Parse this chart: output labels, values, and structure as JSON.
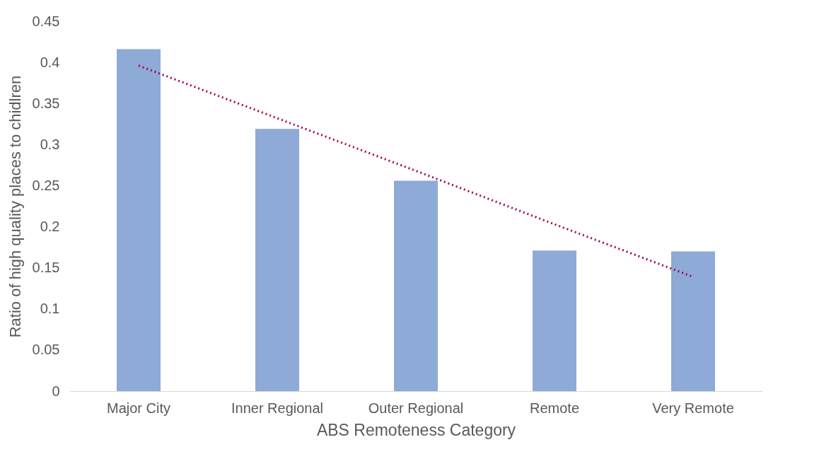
{
  "chart_data": {
    "type": "bar",
    "xlabel": "ABS Remoteness Category",
    "ylabel": "Ratio of high quality places to chidlren",
    "categories": [
      "Major City",
      "Inner Regional",
      "Outer Regional",
      "Remote",
      "Very Remote"
    ],
    "series": [
      {
        "color": "#8eaad6",
        "values": [
          0.416,
          0.319,
          0.256,
          0.171,
          0.17
        ]
      },
      {
        "type": "line",
        "color": "#a3005b",
        "line_style": "dotted",
        "values": [
          0.396,
          0.332,
          0.268,
          0.203,
          0.139
        ]
      }
    ],
    "ylim": [
      0,
      0.45
    ],
    "yticks": [
      0,
      0.05,
      0.1,
      0.15,
      0.2,
      0.25,
      0.3,
      0.35,
      0.4,
      0.45
    ],
    "grid": false,
    "legend": false
  }
}
